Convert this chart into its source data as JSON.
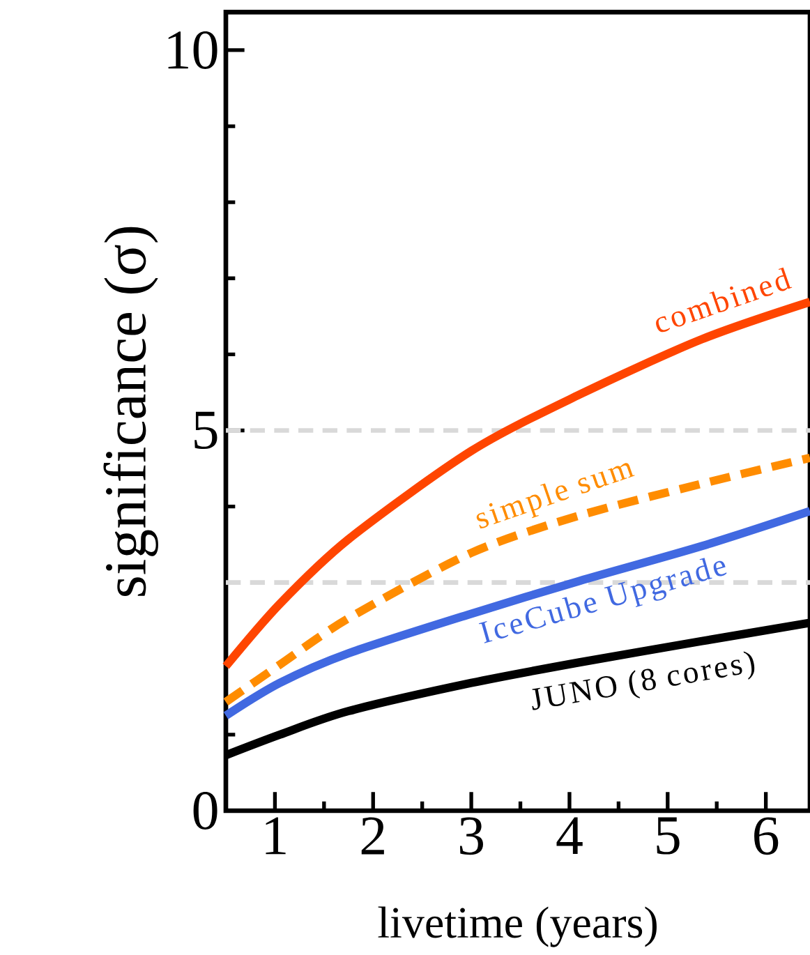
{
  "chart_data": {
    "type": "line",
    "xlabel": "livetime (years)",
    "ylabel": "significance (σ)",
    "xlim": [
      0.5,
      6.45
    ],
    "ylim": [
      0,
      10.5
    ],
    "xticks": [
      {
        "value": 0.5,
        "label": null
      },
      1,
      {
        "value": 1.5,
        "label": null
      },
      2,
      {
        "value": 2.5,
        "label": null
      },
      3,
      {
        "value": 3.5,
        "label": null
      },
      4,
      {
        "value": 4.5,
        "label": null
      },
      5,
      {
        "value": 5.5,
        "label": null
      },
      6
    ],
    "yticks": [
      0,
      {
        "value": 1,
        "label": null
      },
      {
        "value": 2,
        "label": null
      },
      {
        "value": 3,
        "label": null
      },
      {
        "value": 4,
        "label": null
      },
      5,
      {
        "value": 6,
        "label": null
      },
      {
        "value": 7,
        "label": null
      },
      {
        "value": 8,
        "label": null
      },
      {
        "value": 9,
        "label": null
      },
      10
    ],
    "x": [
      0.5,
      1.05,
      1.75,
      3,
      4.1,
      5.35,
      6.45
    ],
    "series": [
      {
        "name": "combined",
        "color": "#ff4500",
        "line_style": "solid",
        "values": [
          1.9,
          2.72,
          3.57,
          4.73,
          5.47,
          6.2,
          6.69
        ]
      },
      {
        "name": "simple sum",
        "color": "#ff8c00",
        "line_style": "dashed",
        "values": [
          1.43,
          1.92,
          2.53,
          3.39,
          3.88,
          4.3,
          4.64
        ]
      },
      {
        "name": "IceCube Upgrade",
        "color": "#4169e1",
        "line_style": "solid",
        "values": [
          1.25,
          1.68,
          2.07,
          2.59,
          3.02,
          3.48,
          3.94
        ]
      },
      {
        "name": "JUNO (8 cores)",
        "color": "#000000",
        "line_style": "solid",
        "values": [
          0.73,
          1.0,
          1.31,
          1.68,
          1.95,
          2.23,
          2.47
        ]
      }
    ],
    "ref_lines": [
      {
        "axis": "y",
        "value": 5,
        "color": "#d9d9d9",
        "line_style": "dashed"
      },
      {
        "axis": "y",
        "value": 3,
        "color": "#d9d9d9",
        "line_style": "dashed"
      }
    ]
  }
}
